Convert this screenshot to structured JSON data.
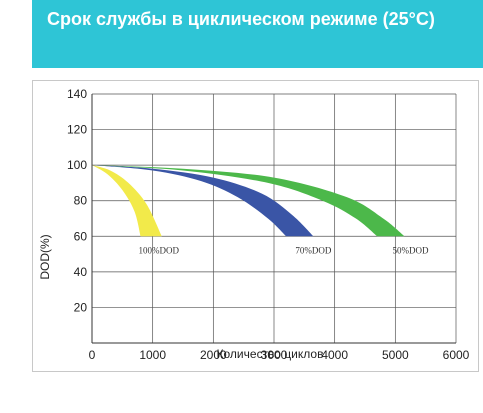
{
  "header": {
    "title": "Срок службы в циклическом режиме (25°С)"
  },
  "colors": {
    "header_bg": "#2ec5d6",
    "dod100": "#f2ea4a",
    "dod70": "#3a55a6",
    "dod50": "#4cb84a"
  },
  "chart_data": {
    "type": "area",
    "title": "",
    "xlabel": "Количество циклов",
    "ylabel": "DOD(%)",
    "xlim": [
      0,
      6000
    ],
    "ylim": [
      0,
      140
    ],
    "xticks": [
      "0",
      "1000",
      "2000",
      "3000",
      "4000",
      "5000",
      "6000"
    ],
    "yticks": [
      "20",
      "40",
      "60",
      "80",
      "100",
      "120",
      "140"
    ],
    "grid": true,
    "series": [
      {
        "name": "100%DOD",
        "color": "#f2ea4a",
        "upper": [
          [
            0,
            100
          ],
          [
            300,
            97
          ],
          [
            600,
            90
          ],
          [
            900,
            78
          ],
          [
            1150,
            60
          ]
        ],
        "lower": [
          [
            0,
            100
          ],
          [
            250,
            95
          ],
          [
            500,
            86
          ],
          [
            700,
            74
          ],
          [
            800,
            60
          ]
        ]
      },
      {
        "name": "70%DOD",
        "color": "#3a55a6",
        "upper": [
          [
            0,
            100
          ],
          [
            1000,
            98
          ],
          [
            2000,
            93
          ],
          [
            2800,
            84
          ],
          [
            3300,
            72
          ],
          [
            3650,
            60
          ]
        ],
        "lower": [
          [
            0,
            100
          ],
          [
            1000,
            97
          ],
          [
            1800,
            91
          ],
          [
            2400,
            82
          ],
          [
            2900,
            70
          ],
          [
            3200,
            60
          ]
        ]
      },
      {
        "name": "50%DOD",
        "color": "#4cb84a",
        "upper": [
          [
            0,
            100
          ],
          [
            1500,
            98
          ],
          [
            3000,
            93
          ],
          [
            4200,
            82
          ],
          [
            4800,
            70
          ],
          [
            5150,
            60
          ]
        ],
        "lower": [
          [
            0,
            100
          ],
          [
            1500,
            97
          ],
          [
            2900,
            90
          ],
          [
            3800,
            80
          ],
          [
            4350,
            70
          ],
          [
            4700,
            60
          ]
        ]
      }
    ],
    "annotations": [
      {
        "text": "100%DOD",
        "x": 1100,
        "y": 52
      },
      {
        "text": "70%DOD",
        "x": 3650,
        "y": 52
      },
      {
        "text": "50%DOD",
        "x": 5250,
        "y": 52
      }
    ]
  }
}
